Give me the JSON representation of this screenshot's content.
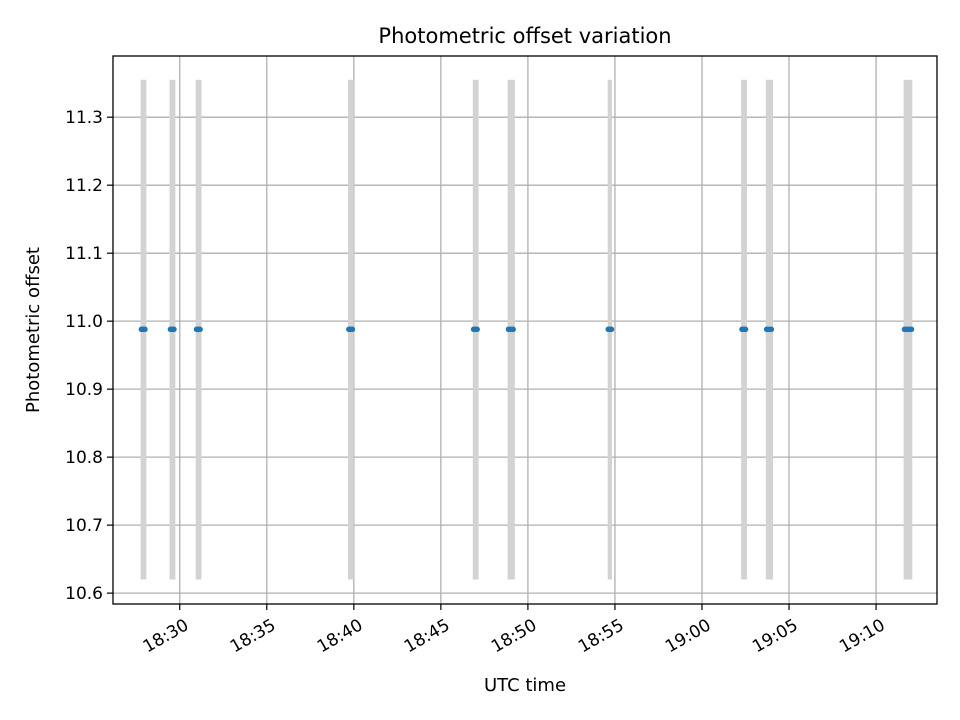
{
  "chart_data": {
    "type": "scatter",
    "title": "Photometric offset variation",
    "xlabel": "UTC time",
    "ylabel": "Photometric offset",
    "x_axis_kind": "time",
    "xlim": [
      "18:26:10",
      "19:13:30"
    ],
    "ylim": [
      10.584,
      11.39
    ],
    "x_ticks": [
      "18:30",
      "18:35",
      "18:40",
      "18:45",
      "18:50",
      "18:55",
      "19:00",
      "19:05",
      "19:10"
    ],
    "y_ticks": [
      "10.6",
      "10.7",
      "10.8",
      "10.9",
      "11.0",
      "11.1",
      "11.2",
      "11.3"
    ],
    "grid": true,
    "colors": {
      "points": "#1f77b4",
      "spans": "#d3d3d3"
    },
    "spans": [
      {
        "start": "18:27:45",
        "end": "18:28:05",
        "y_range": [
          10.62,
          11.355
        ]
      },
      {
        "start": "18:29:25",
        "end": "18:29:45",
        "y_range": [
          10.62,
          11.355
        ]
      },
      {
        "start": "18:30:55",
        "end": "18:31:15",
        "y_range": [
          10.62,
          11.355
        ]
      },
      {
        "start": "18:39:40",
        "end": "18:40:00",
        "y_range": [
          10.62,
          11.355
        ]
      },
      {
        "start": "18:46:50",
        "end": "18:47:10",
        "y_range": [
          10.62,
          11.355
        ]
      },
      {
        "start": "18:48:50",
        "end": "18:49:15",
        "y_range": [
          10.62,
          11.355
        ]
      },
      {
        "start": "18:54:35",
        "end": "18:54:50",
        "y_range": [
          10.62,
          11.355
        ]
      },
      {
        "start": "19:02:15",
        "end": "19:02:35",
        "y_range": [
          10.62,
          11.355
        ]
      },
      {
        "start": "19:03:40",
        "end": "19:04:05",
        "y_range": [
          10.62,
          11.355
        ]
      },
      {
        "start": "19:11:35",
        "end": "19:12:05",
        "y_range": [
          10.62,
          11.355
        ]
      }
    ],
    "series": [
      {
        "x": [
          "18:27:48",
          "18:27:54",
          "18:28:00",
          "18:29:28",
          "18:29:34",
          "18:29:40",
          "18:30:58",
          "18:31:04",
          "18:31:10",
          "18:39:43",
          "18:39:49",
          "18:39:55",
          "18:46:53",
          "18:46:59",
          "18:47:05",
          "18:48:53",
          "18:49:01",
          "18:49:09",
          "18:54:37",
          "18:54:43",
          "18:54:48",
          "19:02:18",
          "19:02:24",
          "19:02:30",
          "19:03:43",
          "19:03:51",
          "19:03:59",
          "19:11:38",
          "19:11:46",
          "19:11:54",
          "19:12:02"
        ],
        "y": [
          10.988,
          10.988,
          10.988,
          10.988,
          10.988,
          10.988,
          10.988,
          10.988,
          10.988,
          10.988,
          10.988,
          10.988,
          10.988,
          10.988,
          10.988,
          10.988,
          10.988,
          10.988,
          10.988,
          10.988,
          10.988,
          10.988,
          10.988,
          10.988,
          10.988,
          10.988,
          10.988,
          10.988,
          10.988,
          10.988,
          10.988
        ]
      }
    ]
  }
}
